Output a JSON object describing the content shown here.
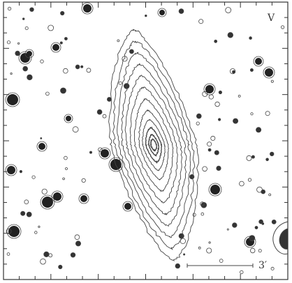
{
  "panel_label": "V",
  "scale_bar": {
    "label": "3′"
  }
}
